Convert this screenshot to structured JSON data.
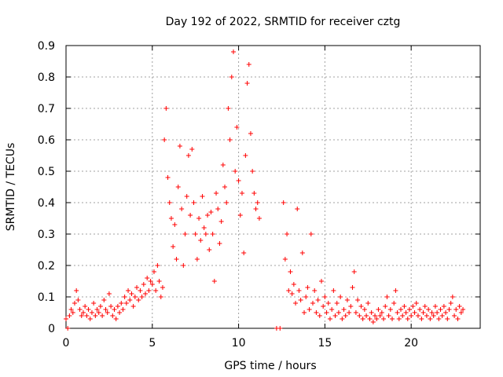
{
  "chart_data": {
    "type": "scatter",
    "title": "Day 192 of 2022, SRMTID for receiver cztg",
    "xlabel": "GPS time / hours",
    "ylabel": "SRMTID / TECUs",
    "xlim": [
      0,
      24
    ],
    "ylim": [
      0,
      0.9
    ],
    "xticks": [
      0,
      5,
      10,
      15,
      20
    ],
    "yticks": [
      0,
      0.1,
      0.2,
      0.3,
      0.4,
      0.5,
      0.6,
      0.7,
      0.8,
      0.9
    ],
    "grid": true,
    "marker": "+",
    "series": [
      {
        "name": "SRMTID",
        "color": "#ff0000",
        "points": [
          [
            0.0,
            0.03
          ],
          [
            0.1,
            0.0
          ],
          [
            0.2,
            0.04
          ],
          [
            0.3,
            0.06
          ],
          [
            0.4,
            0.05
          ],
          [
            0.5,
            0.08
          ],
          [
            0.6,
            0.12
          ],
          [
            0.7,
            0.09
          ],
          [
            0.8,
            0.06
          ],
          [
            0.9,
            0.04
          ],
          [
            1.0,
            0.05
          ],
          [
            1.1,
            0.07
          ],
          [
            1.2,
            0.04
          ],
          [
            1.3,
            0.06
          ],
          [
            1.4,
            0.03
          ],
          [
            1.5,
            0.05
          ],
          [
            1.6,
            0.08
          ],
          [
            1.7,
            0.04
          ],
          [
            1.8,
            0.06
          ],
          [
            1.9,
            0.05
          ],
          [
            2.0,
            0.07
          ],
          [
            2.1,
            0.04
          ],
          [
            2.2,
            0.09
          ],
          [
            2.3,
            0.06
          ],
          [
            2.4,
            0.05
          ],
          [
            2.5,
            0.11
          ],
          [
            2.6,
            0.07
          ],
          [
            2.7,
            0.04
          ],
          [
            2.8,
            0.06
          ],
          [
            2.9,
            0.03
          ],
          [
            3.0,
            0.07
          ],
          [
            3.1,
            0.05
          ],
          [
            3.2,
            0.08
          ],
          [
            3.3,
            0.06
          ],
          [
            3.4,
            0.1
          ],
          [
            3.5,
            0.08
          ],
          [
            3.6,
            0.12
          ],
          [
            3.7,
            0.09
          ],
          [
            3.8,
            0.11
          ],
          [
            3.9,
            0.07
          ],
          [
            4.0,
            0.1
          ],
          [
            4.1,
            0.13
          ],
          [
            4.2,
            0.09
          ],
          [
            4.3,
            0.12
          ],
          [
            4.4,
            0.1
          ],
          [
            4.5,
            0.14
          ],
          [
            4.6,
            0.11
          ],
          [
            4.7,
            0.16
          ],
          [
            4.8,
            0.12
          ],
          [
            4.9,
            0.15
          ],
          [
            5.0,
            0.14
          ],
          [
            5.1,
            0.18
          ],
          [
            5.2,
            0.12
          ],
          [
            5.3,
            0.2
          ],
          [
            5.4,
            0.15
          ],
          [
            5.5,
            0.1
          ],
          [
            5.6,
            0.13
          ],
          [
            5.7,
            0.6
          ],
          [
            5.8,
            0.7
          ],
          [
            5.9,
            0.48
          ],
          [
            6.0,
            0.4
          ],
          [
            6.1,
            0.35
          ],
          [
            6.2,
            0.26
          ],
          [
            6.3,
            0.33
          ],
          [
            6.4,
            0.22
          ],
          [
            6.5,
            0.45
          ],
          [
            6.6,
            0.58
          ],
          [
            6.7,
            0.38
          ],
          [
            6.8,
            0.2
          ],
          [
            6.9,
            0.3
          ],
          [
            7.0,
            0.42
          ],
          [
            7.1,
            0.55
          ],
          [
            7.2,
            0.36
          ],
          [
            7.3,
            0.57
          ],
          [
            7.4,
            0.4
          ],
          [
            7.5,
            0.3
          ],
          [
            7.6,
            0.22
          ],
          [
            7.7,
            0.35
          ],
          [
            7.8,
            0.28
          ],
          [
            7.9,
            0.42
          ],
          [
            8.0,
            0.32
          ],
          [
            8.1,
            0.3
          ],
          [
            8.2,
            0.36
          ],
          [
            8.3,
            0.25
          ],
          [
            8.4,
            0.37
          ],
          [
            8.5,
            0.3
          ],
          [
            8.6,
            0.15
          ],
          [
            8.7,
            0.43
          ],
          [
            8.8,
            0.38
          ],
          [
            8.9,
            0.27
          ],
          [
            9.0,
            0.34
          ],
          [
            9.1,
            0.52
          ],
          [
            9.2,
            0.45
          ],
          [
            9.3,
            0.4
          ],
          [
            9.4,
            0.7
          ],
          [
            9.5,
            0.6
          ],
          [
            9.6,
            0.8
          ],
          [
            9.7,
            0.88
          ],
          [
            9.8,
            0.5
          ],
          [
            9.9,
            0.64
          ],
          [
            10.0,
            0.47
          ],
          [
            10.1,
            0.36
          ],
          [
            10.2,
            0.43
          ],
          [
            10.3,
            0.24
          ],
          [
            10.4,
            0.55
          ],
          [
            10.5,
            0.78
          ],
          [
            10.6,
            0.84
          ],
          [
            10.7,
            0.62
          ],
          [
            10.8,
            0.5
          ],
          [
            10.9,
            0.43
          ],
          [
            11.0,
            0.38
          ],
          [
            11.1,
            0.4
          ],
          [
            11.2,
            0.35
          ],
          [
            12.2,
            0.0
          ],
          [
            12.4,
            0.0
          ],
          [
            12.6,
            0.4
          ],
          [
            12.7,
            0.22
          ],
          [
            12.8,
            0.3
          ],
          [
            12.9,
            0.12
          ],
          [
            13.0,
            0.18
          ],
          [
            13.1,
            0.11
          ],
          [
            13.2,
            0.14
          ],
          [
            13.3,
            0.08
          ],
          [
            13.4,
            0.38
          ],
          [
            13.5,
            0.12
          ],
          [
            13.6,
            0.09
          ],
          [
            13.7,
            0.24
          ],
          [
            13.8,
            0.05
          ],
          [
            13.9,
            0.1
          ],
          [
            14.0,
            0.13
          ],
          [
            14.1,
            0.06
          ],
          [
            14.2,
            0.3
          ],
          [
            14.3,
            0.08
          ],
          [
            14.4,
            0.12
          ],
          [
            14.5,
            0.05
          ],
          [
            14.6,
            0.09
          ],
          [
            14.7,
            0.04
          ],
          [
            14.8,
            0.15
          ],
          [
            14.9,
            0.07
          ],
          [
            15.0,
            0.1
          ],
          [
            15.1,
            0.05
          ],
          [
            15.2,
            0.08
          ],
          [
            15.3,
            0.03
          ],
          [
            15.4,
            0.06
          ],
          [
            15.5,
            0.12
          ],
          [
            15.6,
            0.04
          ],
          [
            15.7,
            0.08
          ],
          [
            15.8,
            0.05
          ],
          [
            15.9,
            0.1
          ],
          [
            16.0,
            0.03
          ],
          [
            16.1,
            0.06
          ],
          [
            16.2,
            0.04
          ],
          [
            16.3,
            0.09
          ],
          [
            16.4,
            0.05
          ],
          [
            16.5,
            0.07
          ],
          [
            16.6,
            0.13
          ],
          [
            16.7,
            0.18
          ],
          [
            16.8,
            0.05
          ],
          [
            16.9,
            0.09
          ],
          [
            17.0,
            0.04
          ],
          [
            17.1,
            0.07
          ],
          [
            17.2,
            0.03
          ],
          [
            17.3,
            0.06
          ],
          [
            17.4,
            0.04
          ],
          [
            17.5,
            0.08
          ],
          [
            17.6,
            0.03
          ],
          [
            17.7,
            0.05
          ],
          [
            17.8,
            0.02
          ],
          [
            17.9,
            0.04
          ],
          [
            18.0,
            0.03
          ],
          [
            18.1,
            0.06
          ],
          [
            18.2,
            0.04
          ],
          [
            18.3,
            0.05
          ],
          [
            18.4,
            0.03
          ],
          [
            18.5,
            0.07
          ],
          [
            18.6,
            0.1
          ],
          [
            18.7,
            0.04
          ],
          [
            18.8,
            0.06
          ],
          [
            18.9,
            0.03
          ],
          [
            19.0,
            0.08
          ],
          [
            19.1,
            0.12
          ],
          [
            19.2,
            0.05
          ],
          [
            19.3,
            0.03
          ],
          [
            19.4,
            0.06
          ],
          [
            19.5,
            0.04
          ],
          [
            19.6,
            0.07
          ],
          [
            19.7,
            0.05
          ],
          [
            19.8,
            0.03
          ],
          [
            19.9,
            0.06
          ],
          [
            20.0,
            0.04
          ],
          [
            20.1,
            0.07
          ],
          [
            20.2,
            0.05
          ],
          [
            20.3,
            0.08
          ],
          [
            20.4,
            0.04
          ],
          [
            20.5,
            0.06
          ],
          [
            20.6,
            0.03
          ],
          [
            20.7,
            0.05
          ],
          [
            20.8,
            0.07
          ],
          [
            20.9,
            0.04
          ],
          [
            21.0,
            0.06
          ],
          [
            21.1,
            0.03
          ],
          [
            21.2,
            0.05
          ],
          [
            21.3,
            0.04
          ],
          [
            21.4,
            0.07
          ],
          [
            21.5,
            0.05
          ],
          [
            21.6,
            0.03
          ],
          [
            21.7,
            0.06
          ],
          [
            21.8,
            0.04
          ],
          [
            21.9,
            0.07
          ],
          [
            22.0,
            0.05
          ],
          [
            22.1,
            0.03
          ],
          [
            22.2,
            0.06
          ],
          [
            22.3,
            0.08
          ],
          [
            22.4,
            0.1
          ],
          [
            22.5,
            0.04
          ],
          [
            22.6,
            0.06
          ],
          [
            22.7,
            0.03
          ],
          [
            22.8,
            0.07
          ],
          [
            22.9,
            0.05
          ],
          [
            23.0,
            0.06
          ]
        ]
      }
    ]
  }
}
